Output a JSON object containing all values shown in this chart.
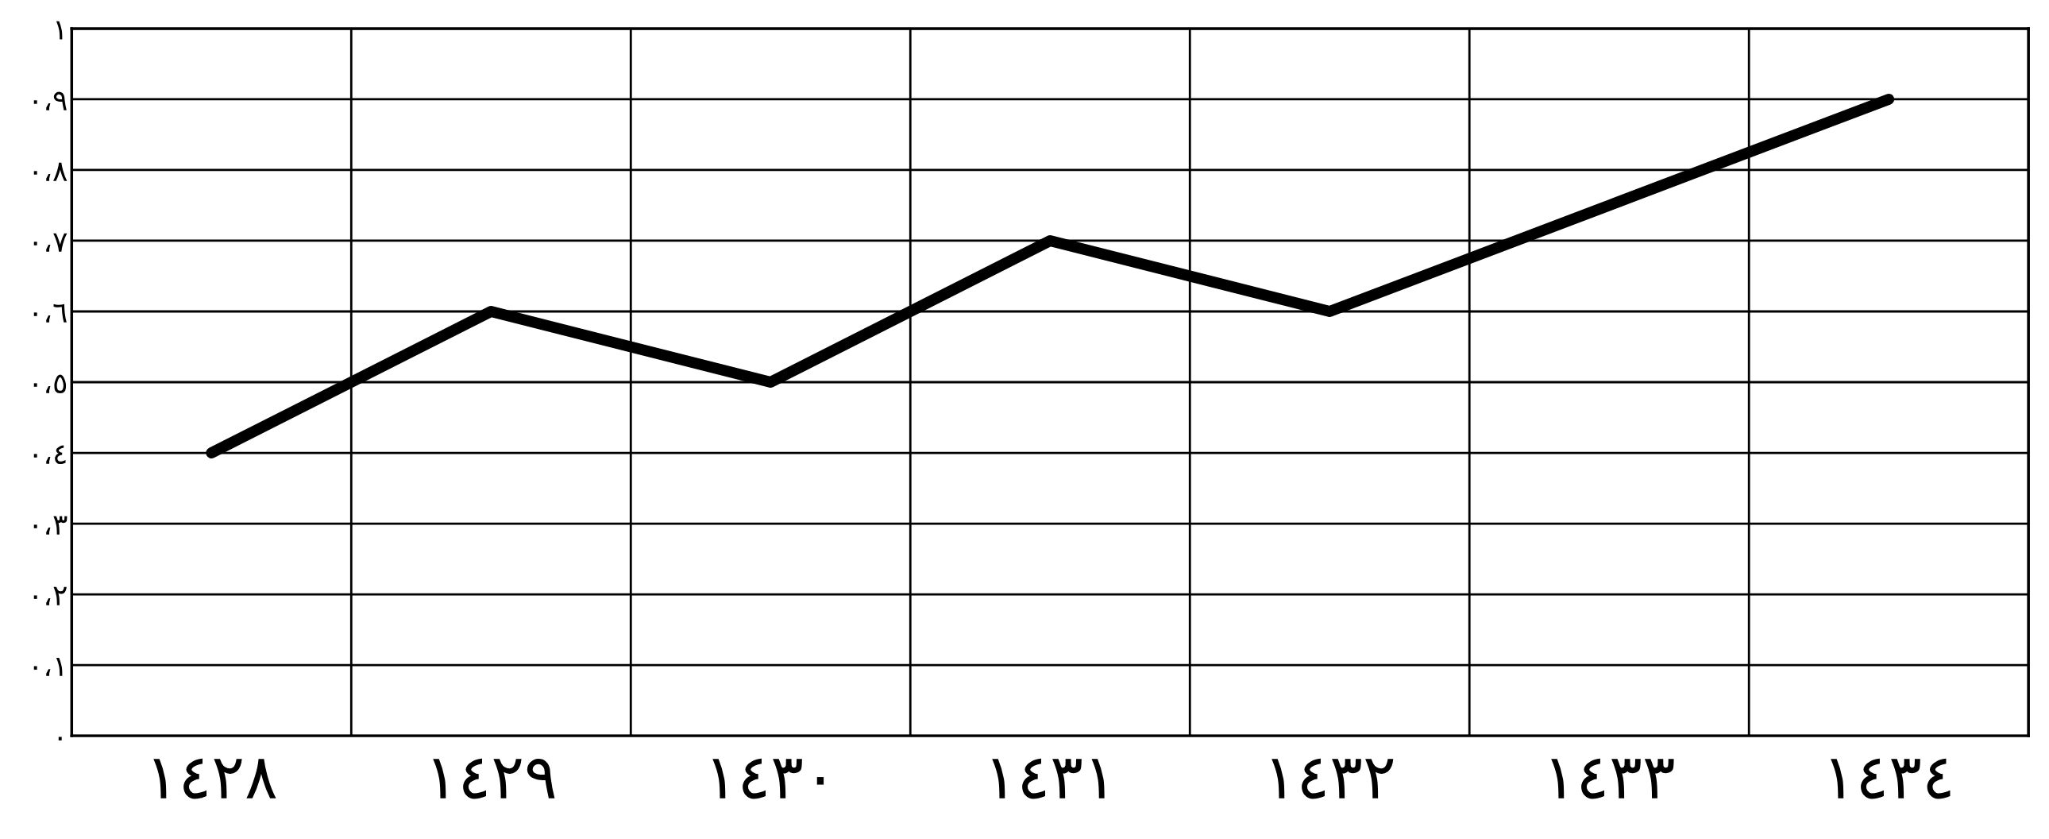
{
  "chart_data": {
    "type": "line",
    "categories": [
      "١٤٢٨",
      "١٤٢٩",
      "١٤٣٠",
      "١٤٣١",
      "١٤٣٢",
      "١٤٣٣",
      "١٤٣٤"
    ],
    "series": [
      {
        "color": "#000000",
        "values": [
          0.4,
          0.6,
          0.5,
          0.7,
          0.6,
          0.75,
          0.9
        ]
      }
    ],
    "ylim": [
      0,
      1
    ],
    "yticks": [
      {
        "value": 0,
        "label": "٠"
      },
      {
        "value": 0.1,
        "label": "٠،١"
      },
      {
        "value": 0.2,
        "label": "٠،٢"
      },
      {
        "value": 0.3,
        "label": "٠،٣"
      },
      {
        "value": 0.4,
        "label": "٠،٤"
      },
      {
        "value": 0.5,
        "label": "٠،٥"
      },
      {
        "value": 0.6,
        "label": "٠،٦"
      },
      {
        "value": 0.7,
        "label": "٠،٧"
      },
      {
        "value": 0.8,
        "label": "٠،٨"
      },
      {
        "value": 0.9,
        "label": "٠،٩"
      },
      {
        "value": 1,
        "label": "١"
      }
    ],
    "grid": true,
    "line_style": "solid"
  }
}
